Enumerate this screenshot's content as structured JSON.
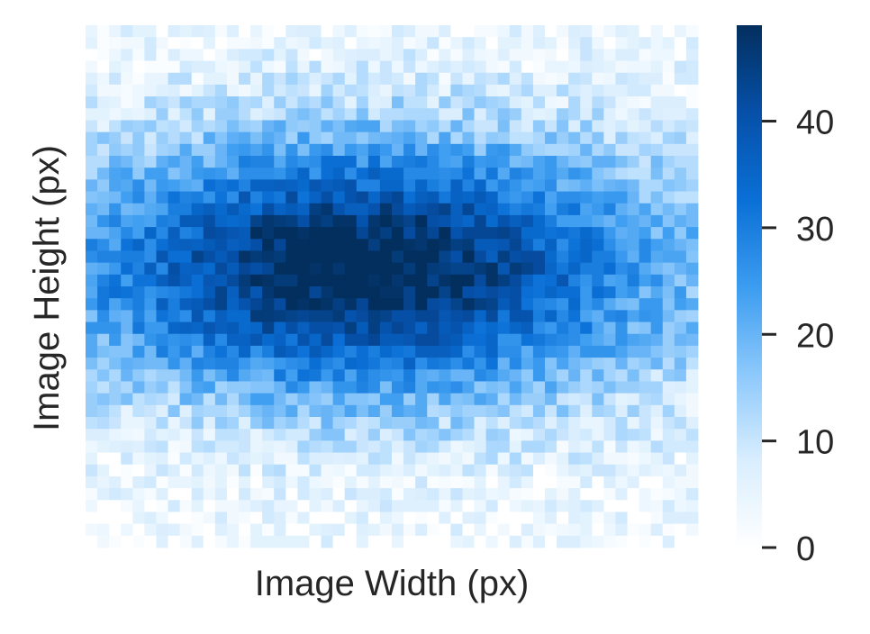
{
  "chart_data": {
    "type": "heatmap",
    "title": "",
    "xlabel": "Image Width (px)",
    "ylabel": "Image Height (px)",
    "grid": false,
    "colormap": {
      "name": "Blues-like",
      "colors": [
        "#ffffff",
        "#d9eefe",
        "#8cc8fb",
        "#3b9cf0",
        "#0a6fd6",
        "#0650a8",
        "#032f5e"
      ]
    },
    "colorbar": {
      "range": [
        0,
        49
      ],
      "ticks": [
        0,
        10,
        20,
        30,
        40
      ],
      "tick_labels": [
        "0",
        "10",
        "20",
        "30",
        "40"
      ],
      "location": "right"
    },
    "bins": {
      "columns": 52,
      "rows": 44
    },
    "x_ticks_shown": false,
    "y_ticks_shown": false,
    "density_description_values": {
      "peak_count": 49,
      "peak_bin_column": 23,
      "peak_bin_row": 20
    },
    "values": []
  }
}
